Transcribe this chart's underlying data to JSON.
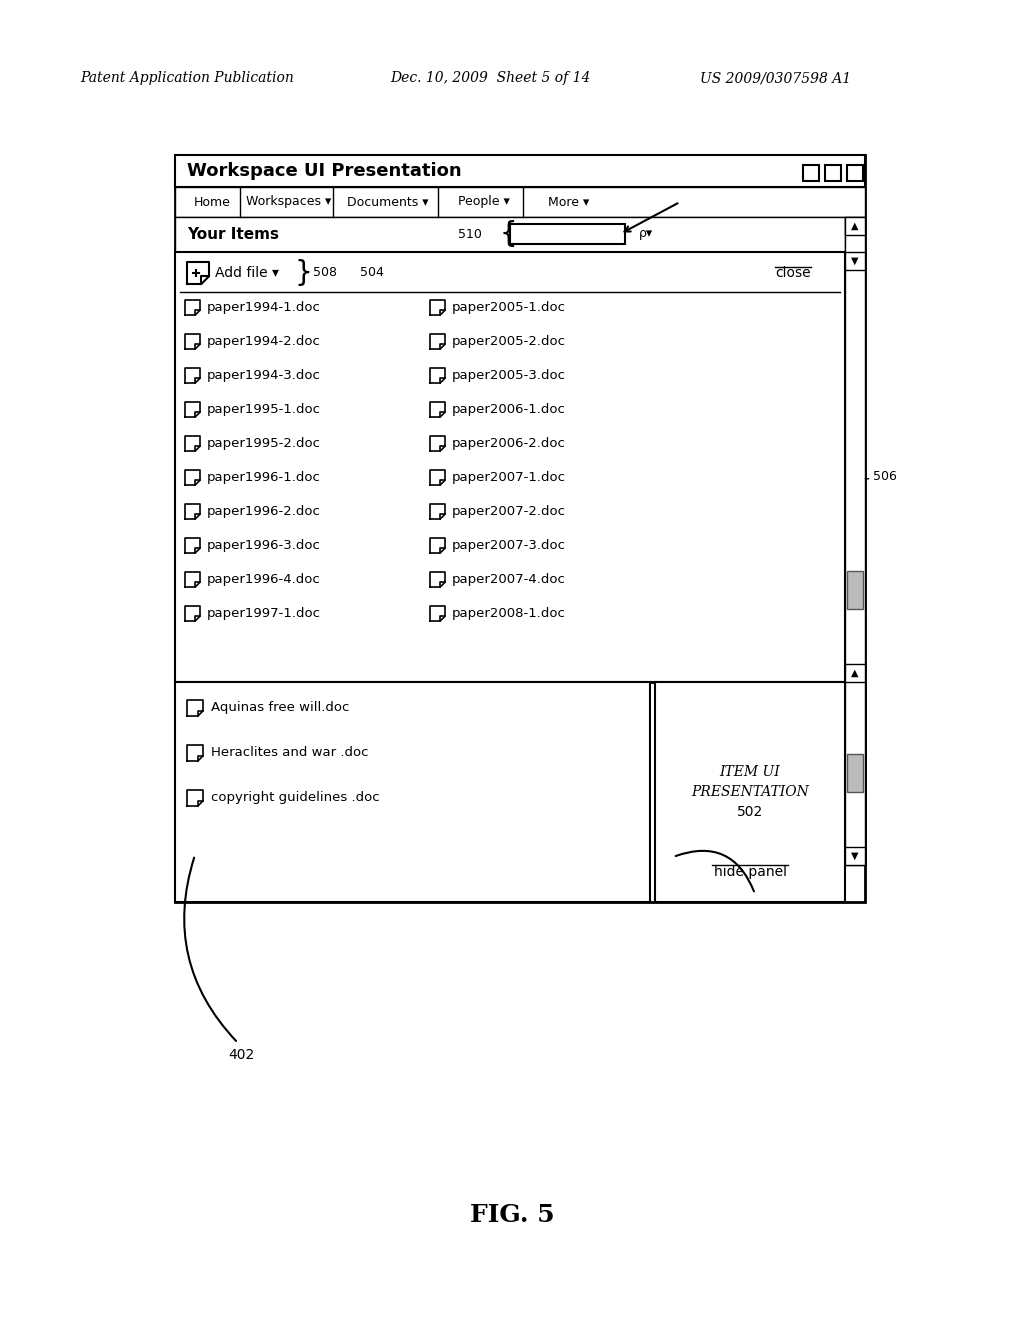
{
  "header_left": "Patent Application Publication",
  "header_mid": "Dec. 10, 2009  Sheet 5 of 14",
  "header_right": "US 2009/0307598 A1",
  "title_bar": "Workspace UI Presentation",
  "nav_items": [
    "Home",
    "Workspaces ▾",
    "Documents ▾",
    "People ▾",
    "More ▾"
  ],
  "section_label": "Your Items",
  "label_510": "510",
  "label_508": "508",
  "label_504": "504",
  "label_506": "506",
  "label_402": "402",
  "close_text": "close",
  "add_file_text": "Add file ▾",
  "left_files": [
    "paper1994-1.doc",
    "paper1994-2.doc",
    "paper1994-3.doc",
    "paper1995-1.doc",
    "paper1995-2.doc",
    "paper1996-1.doc",
    "paper1996-2.doc",
    "paper1996-3.doc",
    "paper1996-4.doc",
    "paper1997-1.doc"
  ],
  "right_files": [
    "paper2005-1.doc",
    "paper2005-2.doc",
    "paper2005-3.doc",
    "paper2006-1.doc",
    "paper2006-2.doc",
    "paper2007-1.doc",
    "paper2007-2.doc",
    "paper2007-3.doc",
    "paper2007-4.doc",
    "paper2008-1.doc"
  ],
  "bottom_left_files": [
    "Aquinas free will.doc",
    "Heraclites and war .doc",
    "copyright guidelines .doc"
  ],
  "item_ui_line1": "ITEM UI",
  "item_ui_line2": "PRESENTATION",
  "item_ui_line3": "502",
  "hide_panel_text": "hide panel",
  "fig_label": "FIG. 5",
  "bg_color": "#ffffff",
  "border_color": "#000000"
}
